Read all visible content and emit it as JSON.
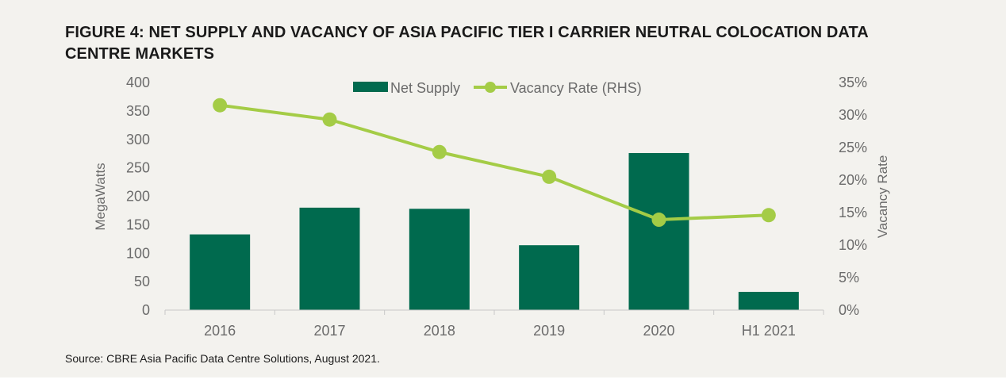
{
  "title": "FIGURE 4: NET SUPPLY AND VACANCY OF ASIA PACIFIC TIER I CARRIER NEUTRAL COLOCATION DATA CENTRE MARKETS",
  "source": "Source: CBRE Asia Pacific Data Centre Solutions, August 2021.",
  "colors": {
    "bar": "#006a4e",
    "line": "#a4cc46",
    "text": "#6b6b6b",
    "axis": "#c8c8c8"
  },
  "chart_data": {
    "type": "bar",
    "categories": [
      "2016",
      "2017",
      "2018",
      "2019",
      "2020",
      "H1 2021"
    ],
    "series": [
      {
        "name": "Net Supply",
        "type": "bar",
        "axis": "left",
        "values": [
          133,
          180,
          178,
          114,
          276,
          32
        ]
      },
      {
        "name": "Vacancy Rate (RHS)",
        "type": "line",
        "axis": "right",
        "values": [
          31.5,
          29.3,
          24.3,
          20.5,
          13.9,
          14.6
        ]
      }
    ],
    "ylabel": "MegaWatts",
    "y2label": "Vacancy Rate",
    "ylim": [
      0,
      400
    ],
    "y2lim": [
      0,
      35
    ],
    "yticks": [
      "0",
      "50",
      "100",
      "150",
      "200",
      "250",
      "300",
      "350",
      "400"
    ],
    "y2ticks": [
      "0%",
      "5%",
      "10%",
      "15%",
      "20%",
      "25%",
      "30%",
      "35%"
    ],
    "legend_position": "top-center",
    "grid": false
  }
}
